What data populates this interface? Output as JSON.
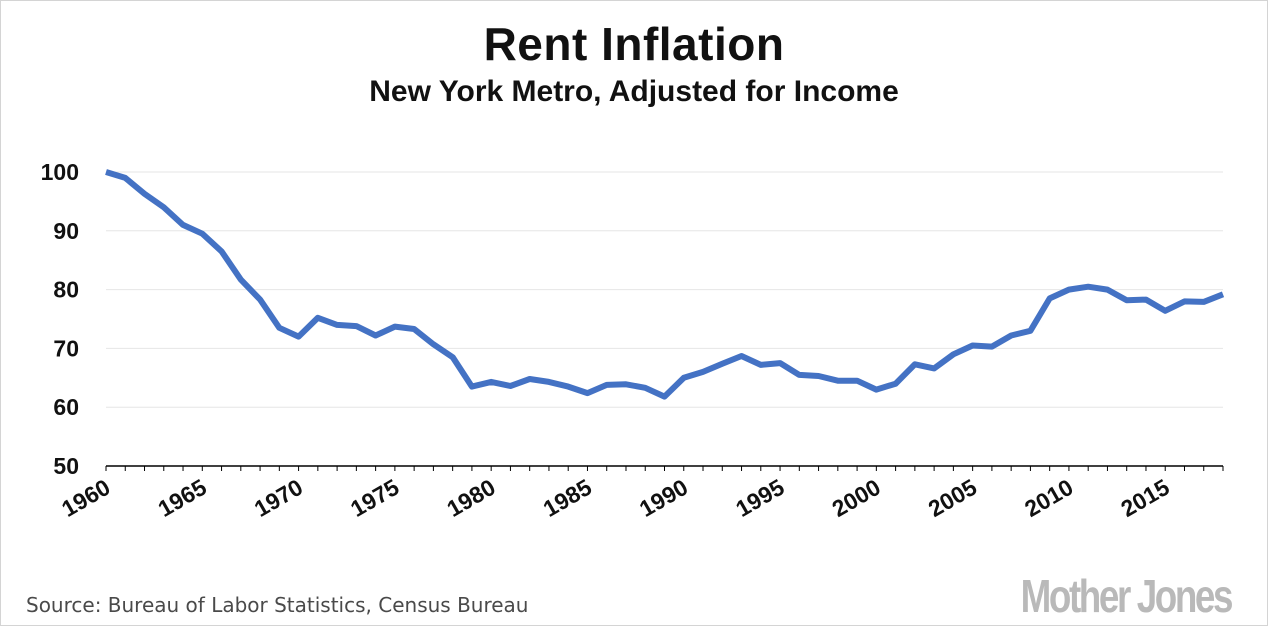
{
  "title": "Rent Inflation",
  "subtitle": "New York Metro, Adjusted for Income",
  "source": "Source: Bureau of Labor Statistics, Census Bureau",
  "logo_text": "Mother Jones",
  "colors": {
    "line": "#4472c4",
    "grid": "#e6e6e6",
    "axis": "#000000",
    "logo": "#b9b9b9"
  },
  "chart_data": {
    "type": "line",
    "title": "Rent Inflation",
    "subtitle": "New York Metro, Adjusted for Income",
    "xlabel": "",
    "ylabel": "",
    "xlim": [
      1960,
      2018
    ],
    "ylim": [
      50,
      100
    ],
    "yticks": [
      "50",
      "60",
      "70",
      "80",
      "90",
      "100"
    ],
    "xticks": [
      "1960",
      "1965",
      "1970",
      "1975",
      "1980",
      "1985",
      "1990",
      "1995",
      "2000",
      "2005",
      "2010",
      "2015"
    ],
    "grid": true,
    "legend": "none",
    "series": [
      {
        "x": [
          1960,
          1961,
          1962,
          1963,
          1964,
          1965,
          1966,
          1967,
          1968,
          1969,
          1970,
          1971,
          1972,
          1973,
          1974,
          1975,
          1976,
          1977,
          1978,
          1979,
          1980,
          1981,
          1982,
          1983,
          1984,
          1985,
          1986,
          1987,
          1988,
          1989,
          1990,
          1991,
          1992,
          1993,
          1994,
          1995,
          1996,
          1997,
          1998,
          1999,
          2000,
          2001,
          2002,
          2003,
          2004,
          2005,
          2006,
          2007,
          2008,
          2009,
          2010,
          2011,
          2012,
          2013,
          2014,
          2015,
          2016,
          2017,
          2018
        ],
        "y": [
          100,
          99,
          96.3,
          94,
          91,
          89.5,
          86.5,
          81.7,
          78.3,
          73.5,
          72,
          75.2,
          74,
          73.8,
          72.2,
          73.7,
          73.3,
          70.7,
          68.5,
          63.5,
          64.3,
          63.6,
          64.8,
          64.3,
          63.5,
          62.4,
          63.8,
          63.9,
          63.3,
          61.8,
          65,
          66,
          67.4,
          68.7,
          67.2,
          67.5,
          65.5,
          65.3,
          64.5,
          64.5,
          63,
          64,
          67.3,
          66.6,
          69,
          70.5,
          70.3,
          72.2,
          73,
          78.5,
          80,
          80.5,
          80,
          78.2,
          78.3,
          76.4,
          78,
          77.9,
          79.2
        ]
      }
    ]
  }
}
